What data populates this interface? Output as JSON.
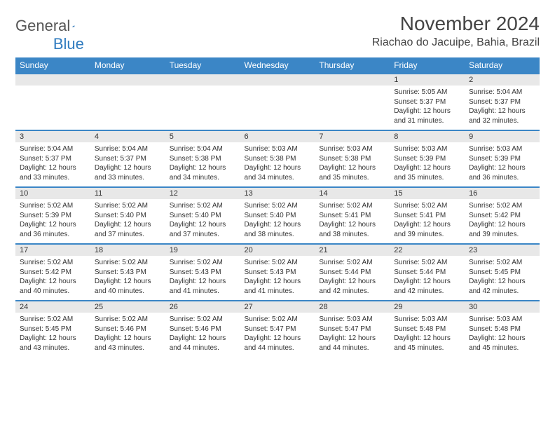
{
  "brand": {
    "word1": "General",
    "word2": "Blue"
  },
  "header": {
    "title": "November 2024",
    "location": "Riachao do Jacuipe, Bahia, Brazil"
  },
  "colors": {
    "accent": "#3b86c6",
    "row_band": "#e8e8e8",
    "text": "#333333",
    "bg": "#ffffff"
  },
  "day_header_bg": "#3b86c6",
  "day_header_fg": "#ffffff",
  "day_labels": [
    "Sunday",
    "Monday",
    "Tuesday",
    "Wednesday",
    "Thursday",
    "Friday",
    "Saturday"
  ],
  "weeks": [
    [
      {
        "blank": true
      },
      {
        "blank": true
      },
      {
        "blank": true
      },
      {
        "blank": true
      },
      {
        "blank": true
      },
      {
        "n": "1",
        "sr": "Sunrise: 5:05 AM",
        "ss": "Sunset: 5:37 PM",
        "dl": "Daylight: 12 hours and 31 minutes."
      },
      {
        "n": "2",
        "sr": "Sunrise: 5:04 AM",
        "ss": "Sunset: 5:37 PM",
        "dl": "Daylight: 12 hours and 32 minutes."
      }
    ],
    [
      {
        "n": "3",
        "sr": "Sunrise: 5:04 AM",
        "ss": "Sunset: 5:37 PM",
        "dl": "Daylight: 12 hours and 33 minutes."
      },
      {
        "n": "4",
        "sr": "Sunrise: 5:04 AM",
        "ss": "Sunset: 5:37 PM",
        "dl": "Daylight: 12 hours and 33 minutes."
      },
      {
        "n": "5",
        "sr": "Sunrise: 5:04 AM",
        "ss": "Sunset: 5:38 PM",
        "dl": "Daylight: 12 hours and 34 minutes."
      },
      {
        "n": "6",
        "sr": "Sunrise: 5:03 AM",
        "ss": "Sunset: 5:38 PM",
        "dl": "Daylight: 12 hours and 34 minutes."
      },
      {
        "n": "7",
        "sr": "Sunrise: 5:03 AM",
        "ss": "Sunset: 5:38 PM",
        "dl": "Daylight: 12 hours and 35 minutes."
      },
      {
        "n": "8",
        "sr": "Sunrise: 5:03 AM",
        "ss": "Sunset: 5:39 PM",
        "dl": "Daylight: 12 hours and 35 minutes."
      },
      {
        "n": "9",
        "sr": "Sunrise: 5:03 AM",
        "ss": "Sunset: 5:39 PM",
        "dl": "Daylight: 12 hours and 36 minutes."
      }
    ],
    [
      {
        "n": "10",
        "sr": "Sunrise: 5:02 AM",
        "ss": "Sunset: 5:39 PM",
        "dl": "Daylight: 12 hours and 36 minutes."
      },
      {
        "n": "11",
        "sr": "Sunrise: 5:02 AM",
        "ss": "Sunset: 5:40 PM",
        "dl": "Daylight: 12 hours and 37 minutes."
      },
      {
        "n": "12",
        "sr": "Sunrise: 5:02 AM",
        "ss": "Sunset: 5:40 PM",
        "dl": "Daylight: 12 hours and 37 minutes."
      },
      {
        "n": "13",
        "sr": "Sunrise: 5:02 AM",
        "ss": "Sunset: 5:40 PM",
        "dl": "Daylight: 12 hours and 38 minutes."
      },
      {
        "n": "14",
        "sr": "Sunrise: 5:02 AM",
        "ss": "Sunset: 5:41 PM",
        "dl": "Daylight: 12 hours and 38 minutes."
      },
      {
        "n": "15",
        "sr": "Sunrise: 5:02 AM",
        "ss": "Sunset: 5:41 PM",
        "dl": "Daylight: 12 hours and 39 minutes."
      },
      {
        "n": "16",
        "sr": "Sunrise: 5:02 AM",
        "ss": "Sunset: 5:42 PM",
        "dl": "Daylight: 12 hours and 39 minutes."
      }
    ],
    [
      {
        "n": "17",
        "sr": "Sunrise: 5:02 AM",
        "ss": "Sunset: 5:42 PM",
        "dl": "Daylight: 12 hours and 40 minutes."
      },
      {
        "n": "18",
        "sr": "Sunrise: 5:02 AM",
        "ss": "Sunset: 5:43 PM",
        "dl": "Daylight: 12 hours and 40 minutes."
      },
      {
        "n": "19",
        "sr": "Sunrise: 5:02 AM",
        "ss": "Sunset: 5:43 PM",
        "dl": "Daylight: 12 hours and 41 minutes."
      },
      {
        "n": "20",
        "sr": "Sunrise: 5:02 AM",
        "ss": "Sunset: 5:43 PM",
        "dl": "Daylight: 12 hours and 41 minutes."
      },
      {
        "n": "21",
        "sr": "Sunrise: 5:02 AM",
        "ss": "Sunset: 5:44 PM",
        "dl": "Daylight: 12 hours and 42 minutes."
      },
      {
        "n": "22",
        "sr": "Sunrise: 5:02 AM",
        "ss": "Sunset: 5:44 PM",
        "dl": "Daylight: 12 hours and 42 minutes."
      },
      {
        "n": "23",
        "sr": "Sunrise: 5:02 AM",
        "ss": "Sunset: 5:45 PM",
        "dl": "Daylight: 12 hours and 42 minutes."
      }
    ],
    [
      {
        "n": "24",
        "sr": "Sunrise: 5:02 AM",
        "ss": "Sunset: 5:45 PM",
        "dl": "Daylight: 12 hours and 43 minutes."
      },
      {
        "n": "25",
        "sr": "Sunrise: 5:02 AM",
        "ss": "Sunset: 5:46 PM",
        "dl": "Daylight: 12 hours and 43 minutes."
      },
      {
        "n": "26",
        "sr": "Sunrise: 5:02 AM",
        "ss": "Sunset: 5:46 PM",
        "dl": "Daylight: 12 hours and 44 minutes."
      },
      {
        "n": "27",
        "sr": "Sunrise: 5:02 AM",
        "ss": "Sunset: 5:47 PM",
        "dl": "Daylight: 12 hours and 44 minutes."
      },
      {
        "n": "28",
        "sr": "Sunrise: 5:03 AM",
        "ss": "Sunset: 5:47 PM",
        "dl": "Daylight: 12 hours and 44 minutes."
      },
      {
        "n": "29",
        "sr": "Sunrise: 5:03 AM",
        "ss": "Sunset: 5:48 PM",
        "dl": "Daylight: 12 hours and 45 minutes."
      },
      {
        "n": "30",
        "sr": "Sunrise: 5:03 AM",
        "ss": "Sunset: 5:48 PM",
        "dl": "Daylight: 12 hours and 45 minutes."
      }
    ]
  ]
}
